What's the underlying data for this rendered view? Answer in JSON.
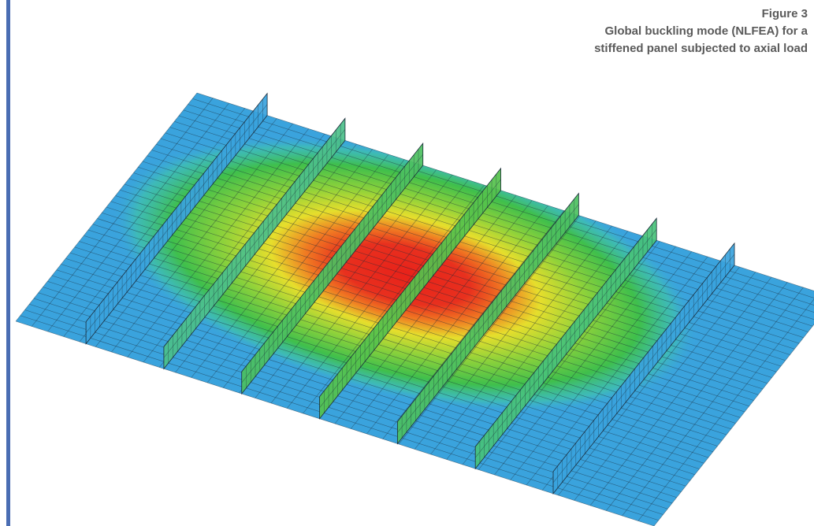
{
  "figure": {
    "label": "Figure 3",
    "caption_lines": [
      "Global buckling mode (NLFEA) for a",
      "stiffened panel subjected to axial load"
    ]
  }
}
